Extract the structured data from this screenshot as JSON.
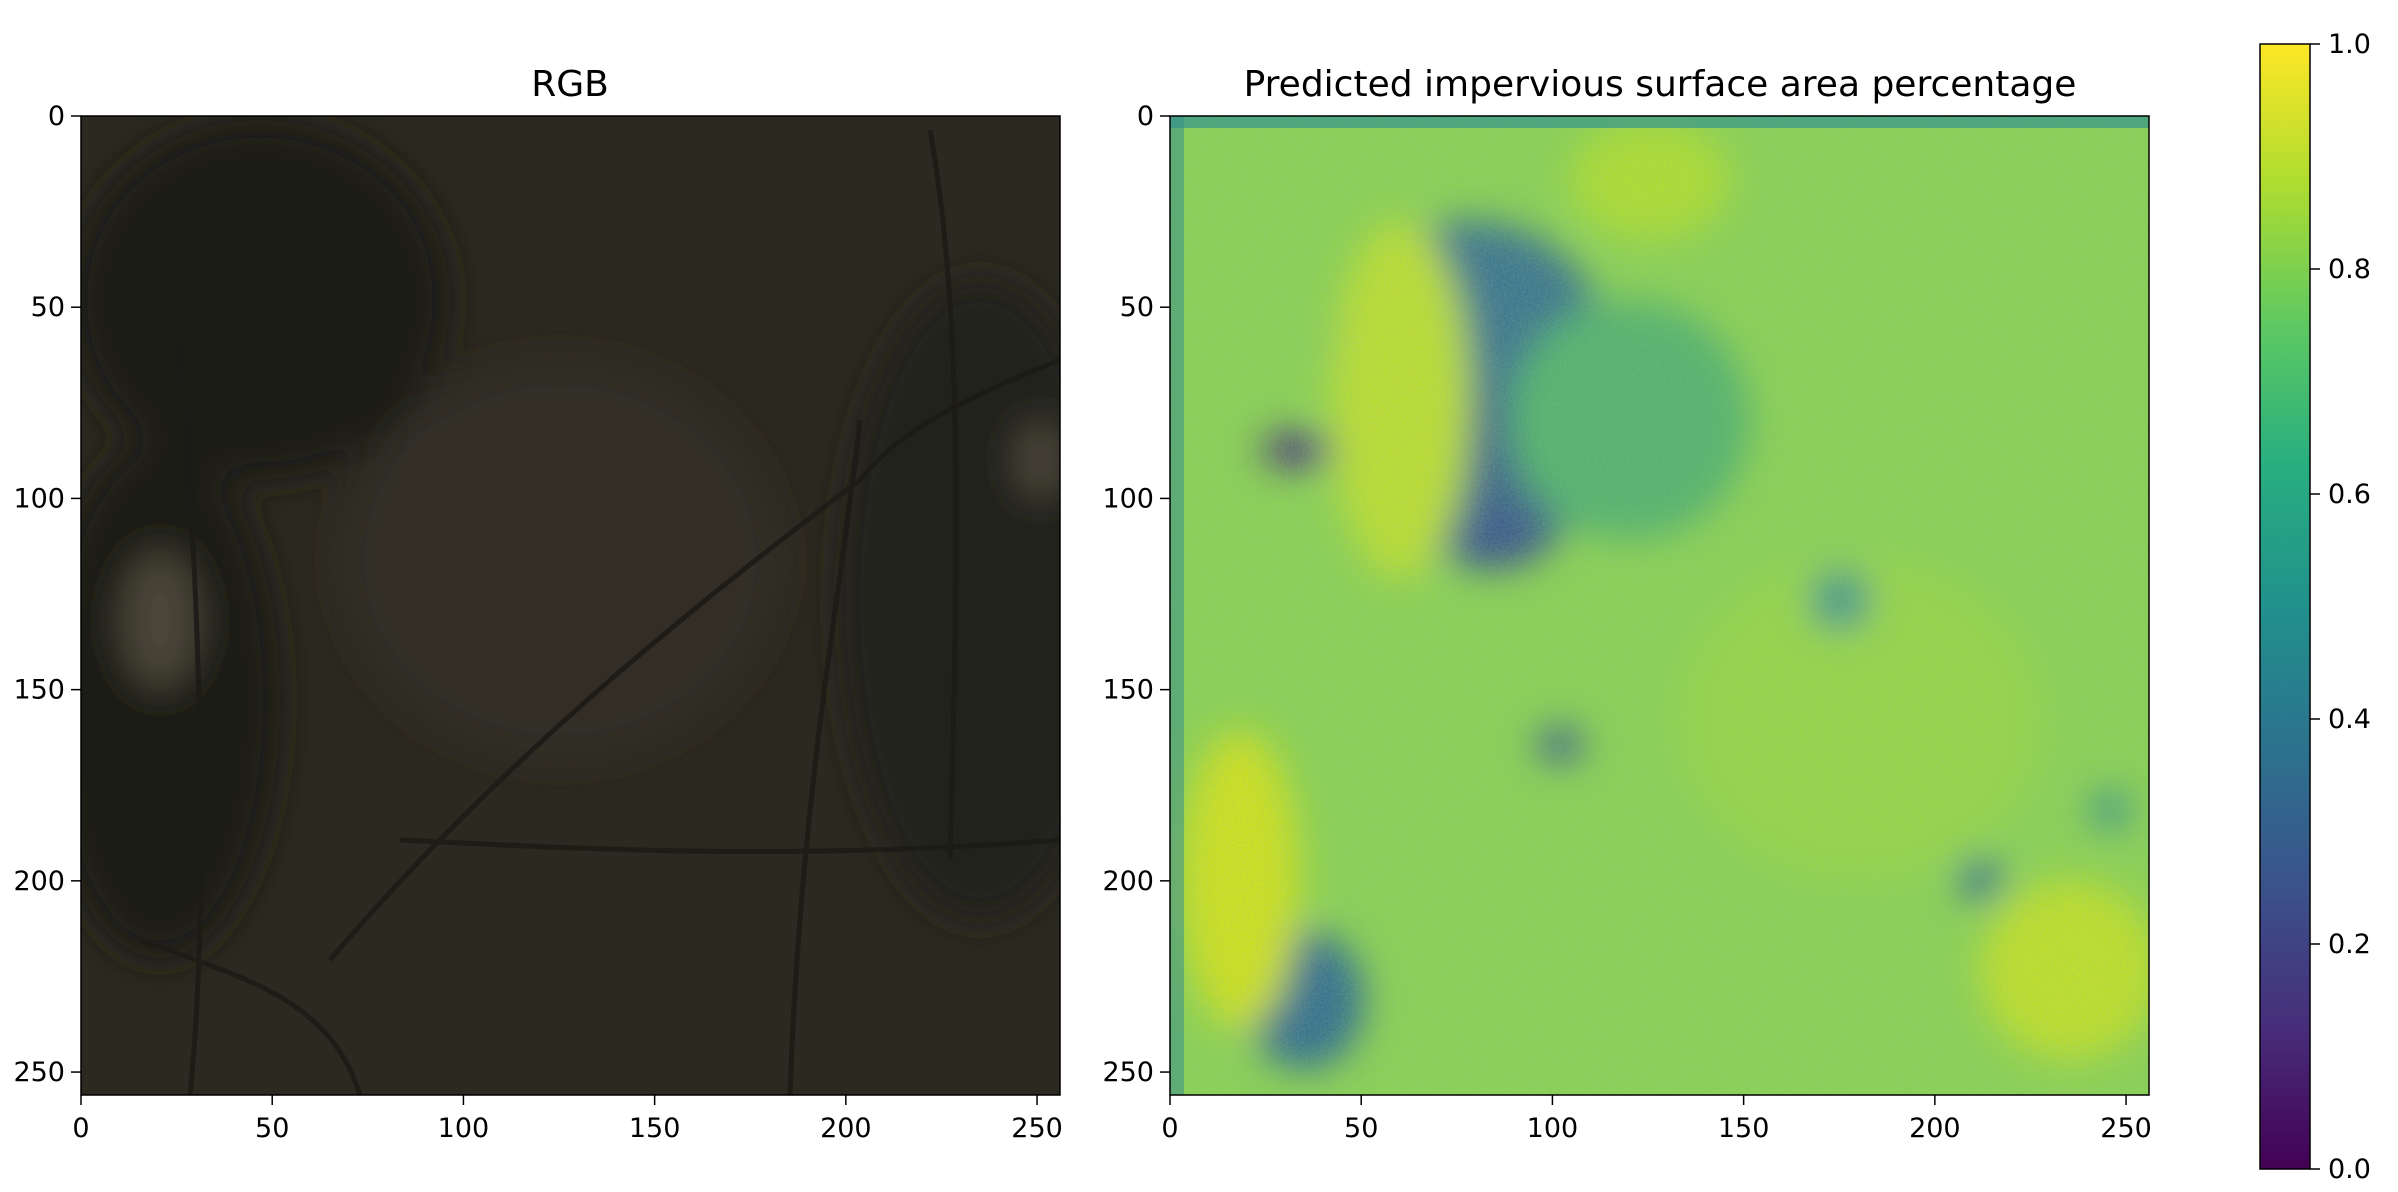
{
  "chart_data": [
    {
      "type": "heatmap",
      "title": "RGB",
      "image": "rgb-satellite-image",
      "xlim": [
        0,
        256
      ],
      "ylim": [
        256,
        0
      ],
      "xticks": [
        0,
        50,
        100,
        150,
        200,
        250
      ],
      "yticks": [
        0,
        50,
        100,
        150,
        200,
        250
      ],
      "colors": {
        "base": "#2c2920",
        "dark_patch": "#1f1d18",
        "light_patch": "#4a4538",
        "road": "#1d1b16"
      }
    },
    {
      "type": "heatmap",
      "title": "Predicted impervious surface area percentage",
      "colormap": "viridis",
      "xlim": [
        0,
        256
      ],
      "ylim": [
        256,
        0
      ],
      "xticks": [
        0,
        50,
        100,
        150,
        200,
        250
      ],
      "yticks": [
        0,
        50,
        100,
        150,
        200,
        250
      ],
      "colorbar": {
        "min": 0.0,
        "max": 1.0,
        "ticks": [
          "0.0",
          "0.2",
          "0.4",
          "0.6",
          "0.8",
          "1.0"
        ]
      },
      "colors": {
        "low": "#440154",
        "mid": "#21918c",
        "high": "#fde725",
        "typical": "#8fd14f"
      }
    }
  ]
}
